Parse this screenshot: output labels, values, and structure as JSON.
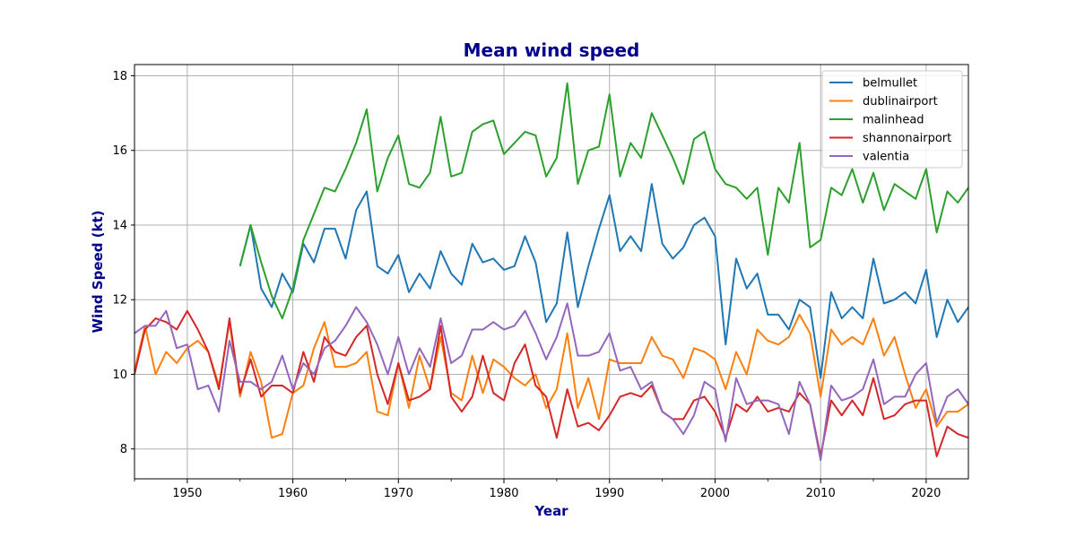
{
  "chart_data": {
    "type": "line",
    "title": "Mean wind speed",
    "xlabel": "Year",
    "ylabel": "Wind Speed (kt)",
    "xlim": [
      1945,
      2024
    ],
    "ylim": [
      7.2,
      18.3
    ],
    "xticks": [
      1950,
      1960,
      1970,
      1980,
      1990,
      2000,
      2010,
      2020
    ],
    "yticks": [
      8,
      10,
      12,
      14,
      16,
      18
    ],
    "grid": true,
    "legend_position": "top-right",
    "series": [
      {
        "name": "belmullet",
        "color": "#1f77b4",
        "x": [
          1955,
          1956,
          1957,
          1958,
          1959,
          1960,
          1961,
          1962,
          1963,
          1964,
          1965,
          1966,
          1967,
          1968,
          1969,
          1970,
          1971,
          1972,
          1973,
          1974,
          1975,
          1976,
          1977,
          1978,
          1979,
          1980,
          1981,
          1982,
          1983,
          1984,
          1985,
          1986,
          1987,
          1988,
          1989,
          1990,
          1991,
          1992,
          1993,
          1994,
          1995,
          1996,
          1997,
          1998,
          1999,
          2000,
          2001,
          2002,
          2003,
          2004,
          2005,
          2006,
          2007,
          2008,
          2009,
          2010,
          2011,
          2012,
          2013,
          2014,
          2015,
          2016,
          2017,
          2018,
          2019,
          2020,
          2021,
          2022,
          2023,
          2024
        ],
        "y": [
          12.9,
          14.0,
          12.3,
          11.8,
          12.7,
          12.2,
          13.5,
          13.0,
          13.9,
          13.9,
          13.1,
          14.4,
          14.9,
          12.9,
          12.7,
          13.2,
          12.2,
          12.7,
          12.3,
          13.3,
          12.7,
          12.4,
          13.5,
          13.0,
          13.1,
          12.8,
          12.9,
          13.7,
          13.0,
          11.4,
          11.9,
          13.8,
          11.8,
          12.9,
          13.9,
          14.8,
          13.3,
          13.7,
          13.3,
          15.1,
          13.5,
          13.1,
          13.4,
          14.0,
          14.2,
          13.7,
          10.8,
          13.1,
          12.3,
          12.7,
          11.6,
          11.6,
          11.2,
          12.0,
          11.8,
          9.9,
          12.2,
          11.5,
          11.8,
          11.5,
          13.1,
          11.9,
          12.0,
          12.2,
          11.9,
          12.8,
          11.0,
          12.0,
          11.4,
          11.8
        ]
      },
      {
        "name": "dublinairport",
        "color": "#ff7f0e",
        "x": [
          1945,
          1946,
          1947,
          1948,
          1949,
          1950,
          1951,
          1952,
          1953,
          1954,
          1955,
          1956,
          1957,
          1958,
          1959,
          1960,
          1961,
          1962,
          1963,
          1964,
          1965,
          1966,
          1967,
          1968,
          1969,
          1970,
          1971,
          1972,
          1973,
          1974,
          1975,
          1976,
          1977,
          1978,
          1979,
          1980,
          1981,
          1982,
          1983,
          1984,
          1985,
          1986,
          1987,
          1988,
          1989,
          1990,
          1991,
          1992,
          1993,
          1994,
          1995,
          1996,
          1997,
          1998,
          1999,
          2000,
          2001,
          2002,
          2003,
          2004,
          2005,
          2006,
          2007,
          2008,
          2009,
          2010,
          2011,
          2012,
          2013,
          2014,
          2015,
          2016,
          2017,
          2018,
          2019,
          2020,
          2021,
          2022,
          2023,
          2024
        ],
        "y": [
          10.1,
          11.3,
          10.0,
          10.6,
          10.3,
          10.7,
          10.9,
          10.6,
          9.7,
          11.4,
          9.4,
          10.6,
          9.8,
          8.3,
          8.4,
          9.5,
          9.7,
          10.7,
          11.4,
          10.2,
          10.2,
          10.3,
          10.6,
          9.0,
          8.9,
          10.3,
          9.1,
          10.5,
          9.6,
          11.0,
          9.5,
          9.3,
          10.5,
          9.5,
          10.4,
          10.2,
          9.9,
          9.7,
          10.0,
          9.1,
          9.6,
          11.1,
          9.1,
          9.9,
          8.8,
          10.4,
          10.3,
          10.3,
          10.3,
          11.0,
          10.5,
          10.4,
          9.9,
          10.7,
          10.6,
          10.4,
          9.6,
          10.6,
          10.0,
          11.2,
          10.9,
          10.8,
          11.0,
          11.6,
          11.1,
          9.4,
          11.2,
          10.8,
          11.0,
          10.8,
          11.5,
          10.5,
          11.0,
          10.0,
          9.1,
          9.6,
          8.6,
          9.0,
          9.0,
          9.2
        ]
      },
      {
        "name": "malinhead",
        "color": "#2ca02c",
        "x": [
          1955,
          1956,
          1957,
          1958,
          1959,
          1960,
          1961,
          1962,
          1963,
          1964,
          1965,
          1966,
          1967,
          1968,
          1969,
          1970,
          1971,
          1972,
          1973,
          1974,
          1975,
          1976,
          1977,
          1978,
          1979,
          1980,
          1981,
          1982,
          1983,
          1984,
          1985,
          1986,
          1987,
          1988,
          1989,
          1990,
          1991,
          1992,
          1993,
          1994,
          1995,
          1996,
          1997,
          1998,
          1999,
          2000,
          2001,
          2002,
          2003,
          2004,
          2005,
          2006,
          2007,
          2008,
          2009,
          2010,
          2011,
          2012,
          2013,
          2014,
          2015,
          2016,
          2017,
          2018,
          2019,
          2020,
          2021,
          2022,
          2023,
          2024
        ],
        "y": [
          12.9,
          14.0,
          13.0,
          12.1,
          11.5,
          12.3,
          13.6,
          14.3,
          15.0,
          14.9,
          15.5,
          16.2,
          17.1,
          14.9,
          15.8,
          16.4,
          15.1,
          15.0,
          15.4,
          16.9,
          15.3,
          15.4,
          16.5,
          16.7,
          16.8,
          15.9,
          16.2,
          16.5,
          16.4,
          15.3,
          15.8,
          17.8,
          15.1,
          16.0,
          16.1,
          17.5,
          15.3,
          16.2,
          15.8,
          17.0,
          16.4,
          15.8,
          15.1,
          16.3,
          16.5,
          15.5,
          15.1,
          15.0,
          14.7,
          15.0,
          13.2,
          15.0,
          14.6,
          16.2,
          13.4,
          13.6,
          15.0,
          14.8,
          15.5,
          14.6,
          15.4,
          14.4,
          15.1,
          14.9,
          14.7,
          15.5,
          13.8,
          14.9,
          14.6,
          15.0
        ]
      },
      {
        "name": "shannonairport",
        "color": "#d62728",
        "x": [
          1945,
          1946,
          1947,
          1948,
          1949,
          1950,
          1951,
          1952,
          1953,
          1954,
          1955,
          1956,
          1957,
          1958,
          1959,
          1960,
          1961,
          1962,
          1963,
          1964,
          1965,
          1966,
          1967,
          1968,
          1969,
          1970,
          1971,
          1972,
          1973,
          1974,
          1975,
          1976,
          1977,
          1978,
          1979,
          1980,
          1981,
          1982,
          1983,
          1984,
          1985,
          1986,
          1987,
          1988,
          1989,
          1990,
          1991,
          1992,
          1993,
          1994,
          1995,
          1996,
          1997,
          1998,
          1999,
          2000,
          2001,
          2002,
          2003,
          2004,
          2005,
          2006,
          2007,
          2008,
          2009,
          2010,
          2011,
          2012,
          2013,
          2014,
          2015,
          2016,
          2017,
          2018,
          2019,
          2020,
          2021,
          2022,
          2023,
          2024
        ],
        "y": [
          10.0,
          11.2,
          11.5,
          11.4,
          11.2,
          11.7,
          11.2,
          10.6,
          9.6,
          11.5,
          9.5,
          10.4,
          9.4,
          9.7,
          9.7,
          9.5,
          10.6,
          9.8,
          11.0,
          10.6,
          10.5,
          11.0,
          11.3,
          10.0,
          9.2,
          10.3,
          9.3,
          9.4,
          9.6,
          11.3,
          9.4,
          9.0,
          9.4,
          10.5,
          9.5,
          9.3,
          10.3,
          10.8,
          9.7,
          9.4,
          8.3,
          9.6,
          8.6,
          8.7,
          8.5,
          8.9,
          9.4,
          9.5,
          9.4,
          9.7,
          9.0,
          8.8,
          8.8,
          9.3,
          9.4,
          9.0,
          8.3,
          9.2,
          9.0,
          9.4,
          9.0,
          9.1,
          9.0,
          9.5,
          9.2,
          7.8,
          9.3,
          8.9,
          9.3,
          8.9,
          9.9,
          8.8,
          8.9,
          9.2,
          9.3,
          9.3,
          7.8,
          8.6,
          8.4,
          8.3
        ]
      },
      {
        "name": "valentia",
        "color": "#9467bd",
        "x": [
          1945,
          1946,
          1947,
          1948,
          1949,
          1950,
          1951,
          1952,
          1953,
          1954,
          1955,
          1956,
          1957,
          1958,
          1959,
          1960,
          1961,
          1962,
          1963,
          1964,
          1965,
          1966,
          1967,
          1968,
          1969,
          1970,
          1971,
          1972,
          1973,
          1974,
          1975,
          1976,
          1977,
          1978,
          1979,
          1980,
          1981,
          1982,
          1983,
          1984,
          1985,
          1986,
          1987,
          1988,
          1989,
          1990,
          1991,
          1992,
          1993,
          1994,
          1995,
          1996,
          1997,
          1998,
          1999,
          2000,
          2001,
          2002,
          2003,
          2004,
          2005,
          2006,
          2007,
          2008,
          2009,
          2010,
          2011,
          2012,
          2013,
          2014,
          2015,
          2016,
          2017,
          2018,
          2019,
          2020,
          2021,
          2022,
          2023,
          2024
        ],
        "y": [
          11.1,
          11.3,
          11.3,
          11.7,
          10.7,
          10.8,
          9.6,
          9.7,
          9.0,
          10.9,
          9.8,
          9.8,
          9.6,
          9.8,
          10.5,
          9.6,
          10.3,
          10.0,
          10.7,
          10.9,
          11.3,
          11.8,
          11.4,
          10.8,
          10.0,
          11.0,
          10.0,
          10.7,
          10.2,
          11.5,
          10.3,
          10.5,
          11.2,
          11.2,
          11.4,
          11.2,
          11.3,
          11.7,
          11.1,
          10.4,
          11.0,
          11.9,
          10.5,
          10.5,
          10.6,
          11.1,
          10.1,
          10.2,
          9.6,
          9.8,
          9.0,
          8.8,
          8.4,
          8.9,
          9.8,
          9.6,
          8.2,
          9.9,
          9.2,
          9.3,
          9.3,
          9.2,
          8.4,
          9.8,
          9.2,
          7.7,
          9.7,
          9.3,
          9.4,
          9.6,
          10.4,
          9.2,
          9.4,
          9.4,
          10.0,
          10.3,
          8.7,
          9.4,
          9.6,
          9.2
        ]
      }
    ]
  }
}
